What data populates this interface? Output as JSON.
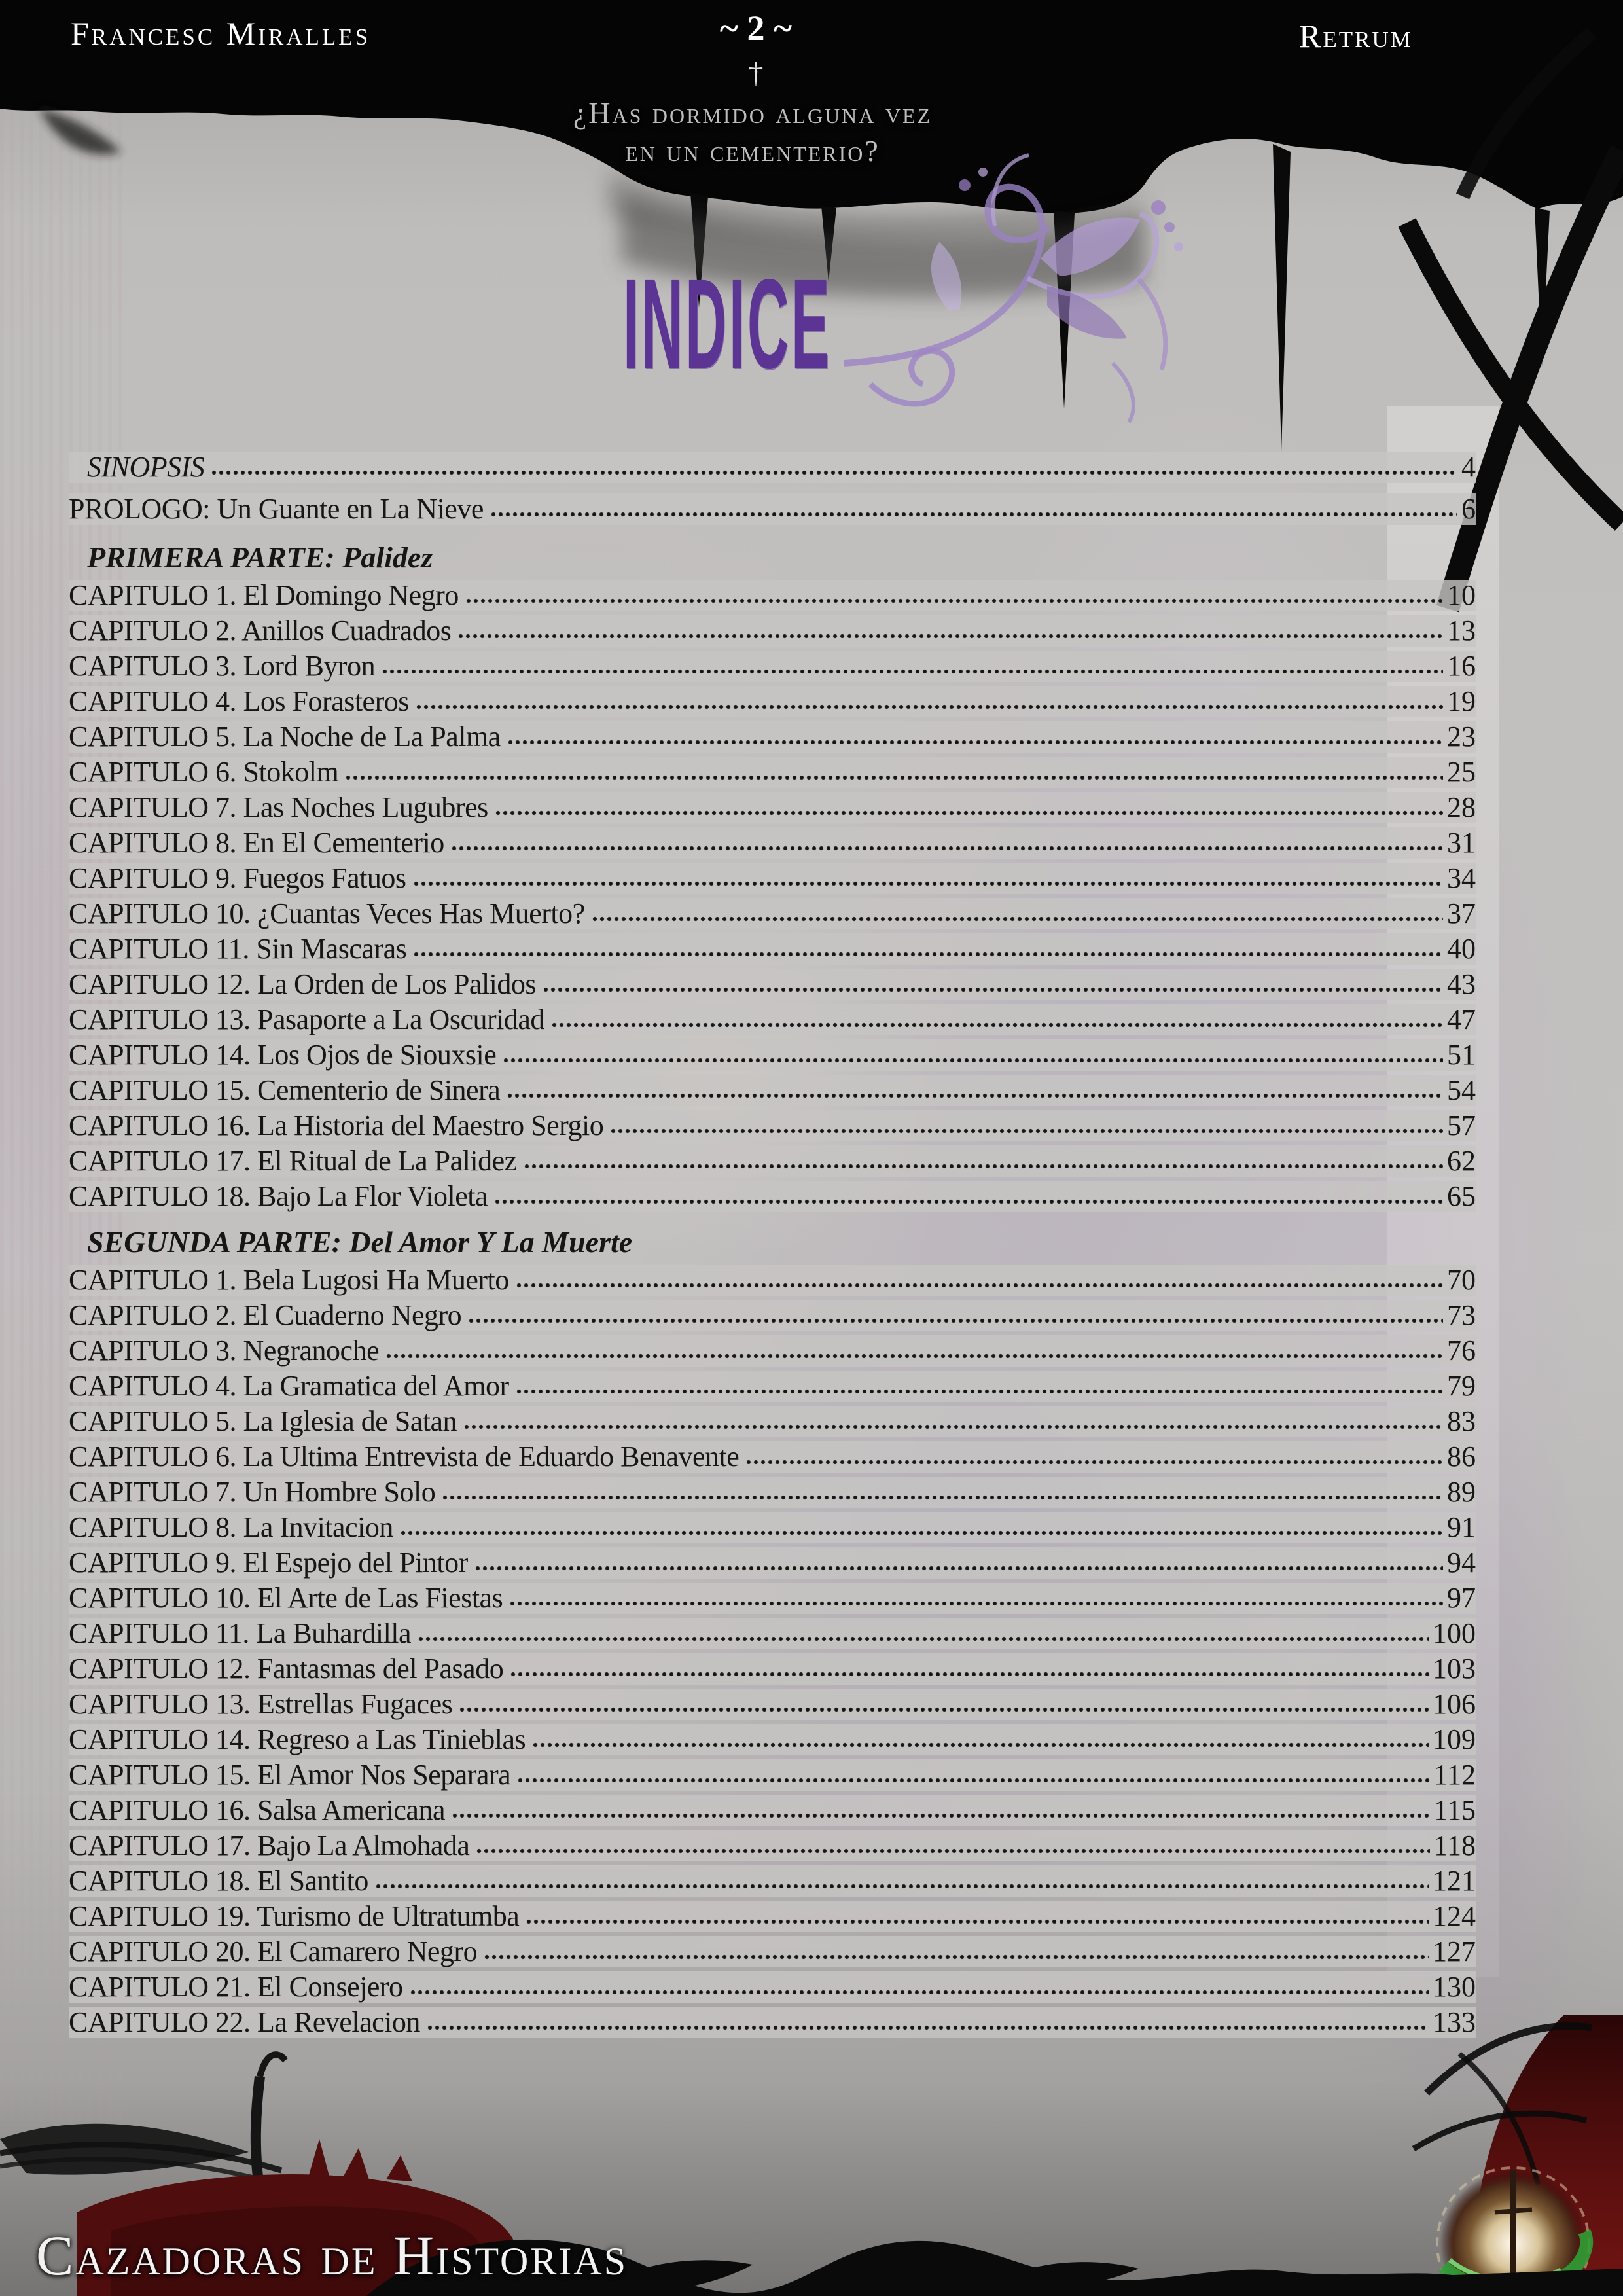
{
  "header": {
    "author": "Francesc Miralles",
    "book_title": "Retrum",
    "page_marker": "~ 2 ~",
    "cross_icon": "†",
    "tagline_line1": "¿Has dormido alguna vez",
    "tagline_line2": "en un cementerio?"
  },
  "title": "INDICE",
  "toc": {
    "front_items": [
      {
        "label": "SINOPSIS",
        "page": "4"
      },
      {
        "label": "PROLOGO: Un Guante en La Nieve",
        "page": "6"
      }
    ],
    "sections": [
      {
        "heading": "PRIMERA PARTE: Palidez",
        "chapters": [
          {
            "label": "CAPITULO 1. El Domingo Negro",
            "page": "10"
          },
          {
            "label": "CAPITULO 2. Anillos Cuadrados",
            "page": "13"
          },
          {
            "label": "CAPITULO 3. Lord Byron",
            "page": "16"
          },
          {
            "label": "CAPITULO 4. Los Forasteros",
            "page": "19"
          },
          {
            "label": "CAPITULO 5. La Noche de La Palma",
            "page": "23"
          },
          {
            "label": "CAPITULO 6. Stokolm",
            "page": "25"
          },
          {
            "label": "CAPITULO 7. Las Noches Lugubres",
            "page": "28"
          },
          {
            "label": "CAPITULO 8. En El Cementerio",
            "page": "31"
          },
          {
            "label": "CAPITULO 9. Fuegos Fatuos",
            "page": "34"
          },
          {
            "label": "CAPITULO 10. ¿Cuantas Veces Has Muerto?",
            "page": "37"
          },
          {
            "label": "CAPITULO 11. Sin Mascaras",
            "page": "40"
          },
          {
            "label": "CAPITULO 12. La Orden de Los Palidos",
            "page": "43"
          },
          {
            "label": "CAPITULO 13. Pasaporte a La Oscuridad",
            "page": "47"
          },
          {
            "label": "CAPITULO 14. Los Ojos de Siouxsie",
            "page": "51"
          },
          {
            "label": "CAPITULO 15. Cementerio de Sinera",
            "page": "54"
          },
          {
            "label": "CAPITULO 16. La Historia del Maestro Sergio",
            "page": "57"
          },
          {
            "label": "CAPITULO 17. El Ritual de La Palidez",
            "page": "62"
          },
          {
            "label": "CAPITULO 18. Bajo La Flor Violeta",
            "page": "65"
          }
        ]
      },
      {
        "heading": "SEGUNDA PARTE: Del Amor Y La Muerte",
        "chapters": [
          {
            "label": "CAPITULO 1. Bela Lugosi Ha Muerto",
            "page": "70"
          },
          {
            "label": "CAPITULO 2. El Cuaderno Negro",
            "page": "73"
          },
          {
            "label": "CAPITULO 3. Negranoche",
            "page": "76"
          },
          {
            "label": "CAPITULO 4. La Gramatica del Amor",
            "page": "79"
          },
          {
            "label": "CAPITULO 5. La Iglesia de Satan",
            "page": "83"
          },
          {
            "label": "CAPITULO 6. La Ultima Entrevista de Eduardo Benavente",
            "page": "86"
          },
          {
            "label": "CAPITULO 7. Un Hombre Solo",
            "page": "89"
          },
          {
            "label": "CAPITULO 8. La Invitacion",
            "page": "91"
          },
          {
            "label": "CAPITULO 9. El Espejo del Pintor",
            "page": "94"
          },
          {
            "label": "CAPITULO 10. El Arte de Las Fiestas",
            "page": "97"
          },
          {
            "label": "CAPITULO 11. La Buhardilla",
            "page": "100"
          },
          {
            "label": "CAPITULO 12. Fantasmas del Pasado",
            "page": "103"
          },
          {
            "label": "CAPITULO 13. Estrellas Fugaces",
            "page": "106"
          },
          {
            "label": "CAPITULO 14. Regreso a Las Tinieblas",
            "page": "109"
          },
          {
            "label": "CAPITULO 15. El Amor Nos Separara",
            "page": "112"
          },
          {
            "label": "CAPITULO 16. Salsa Americana",
            "page": "115"
          },
          {
            "label": "CAPITULO 17. Bajo La Almohada",
            "page": "118"
          },
          {
            "label": "CAPITULO 18. El Santito",
            "page": "121"
          },
          {
            "label": "CAPITULO 19. Turismo de Ultratumba",
            "page": "124"
          },
          {
            "label": "CAPITULO 20. El Camarero Negro",
            "page": "127"
          },
          {
            "label": "CAPITULO 21. El Consejero",
            "page": "130"
          },
          {
            "label": "CAPITULO 22. La Revelacion",
            "page": "133"
          }
        ]
      }
    ]
  },
  "footer": {
    "banner": "Cazadoras de Historias"
  },
  "colors": {
    "accent_purple": "#5b3494",
    "flourish_purple": "#a58bc8",
    "banner_red": "#4f0d0e",
    "page_bg": "#c0bebc",
    "text_color": "#161616"
  }
}
